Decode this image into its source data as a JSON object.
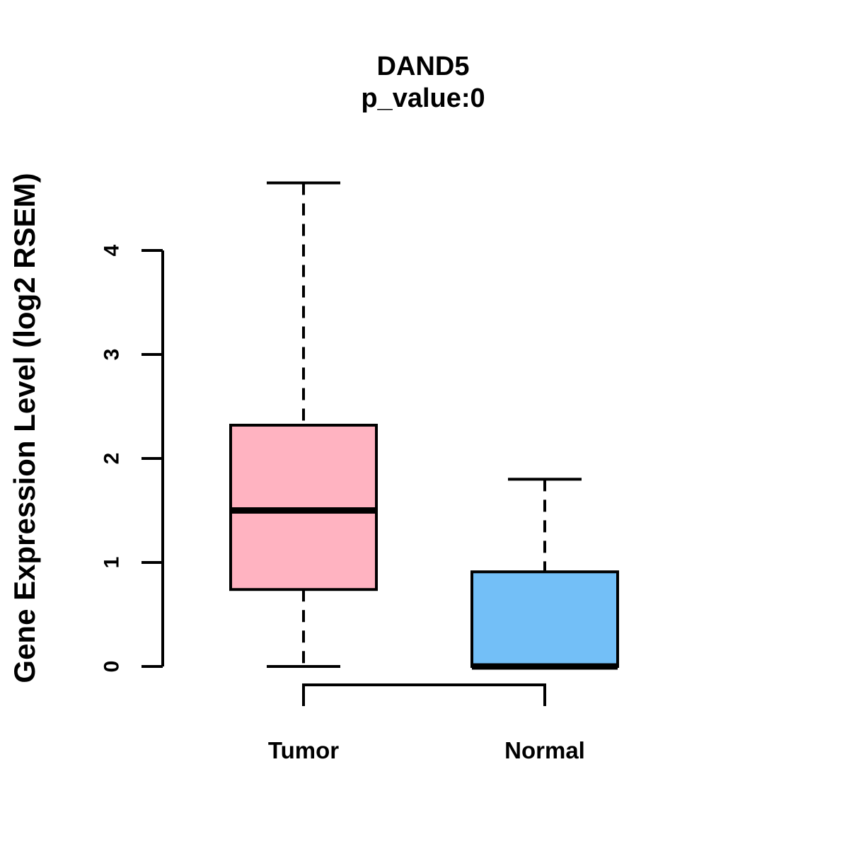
{
  "chart_data": {
    "type": "boxplot",
    "title": "DAND5",
    "subtitle": "p_value:0",
    "ylabel": "Gene Expression Level (log2 RSEM)",
    "xlabel": "",
    "categories": [
      "Tumor",
      "Normal"
    ],
    "yticks": [
      0,
      1,
      2,
      3,
      4
    ],
    "ylim": [
      0,
      4.65
    ],
    "grid": false,
    "legend": "none",
    "border_color": "#000000",
    "series": [
      {
        "name": "Tumor",
        "box_color": "#FFB3C1",
        "whisker_low": 0,
        "q1": 0.74,
        "median": 1.5,
        "q3": 2.32,
        "whisker_high": 4.65
      },
      {
        "name": "Normal",
        "box_color": "#73BFF7",
        "whisker_low": 0,
        "q1": 0,
        "median": 0,
        "q3": 0.91,
        "whisker_high": 1.8
      }
    ]
  }
}
